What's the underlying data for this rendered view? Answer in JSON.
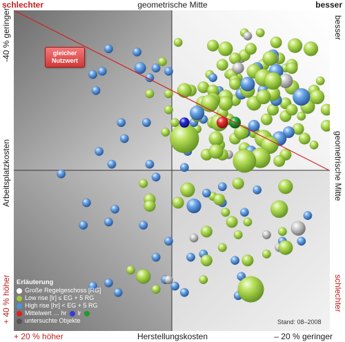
{
  "labels": {
    "top_left": "schlechter",
    "top_center": "geometrische Mitte",
    "top_right": "besser",
    "left_top": "-40 % geringer",
    "left_middle": "Arbeitsplatzkosten",
    "left_bottom": "+ 40 % höher",
    "right_top": "besser",
    "right_middle": "geometrische Mitte",
    "right_bottom": "schlechter",
    "bottom_left": "+ 20 % höher",
    "bottom_center": "Herstellungskosten",
    "bottom_right": "– 20 % geringer",
    "nutzwert_line1": "gleicher",
    "nutzwert_line2": "Nutzwert",
    "stand": "Stand: 08–2008"
  },
  "legend": {
    "title": "Erläuterung",
    "items": [
      {
        "label": "Große Regelgeschoss [RG]",
        "color": "#ffffff"
      },
      {
        "label": "Low rise [lr]  ≤ EG + 5 RG",
        "color": "#9ccc3c"
      },
      {
        "label": "High rise [hr]  < EG + 5 RG",
        "color": "#4f94d8"
      },
      {
        "label": "Mittelwert … hr",
        "color": "#e02020"
      },
      {
        "label": "untersuchte Objekte",
        "color": "#555555"
      }
    ],
    "mittel_lr_label": "lr",
    "mittel_colors": [
      "#3a3ad8",
      "#1f9a2f"
    ]
  },
  "colors": {
    "green": "#9ccc3c",
    "blue": "#4f94d8",
    "grey": "#bbbbbb",
    "diagonal": "#d42020"
  },
  "chart_data": {
    "type": "scatter",
    "title": "",
    "xlabel": "Herstellungskosten",
    "ylabel": "Arbeitsplatzkosten",
    "xlim": [
      0,
      100
    ],
    "ylim": [
      0,
      100
    ],
    "grid": false,
    "legend": "bottom-left",
    "series": [
      {
        "name": "Low rise [lr]  ≤ EG + 5 RG",
        "color": "green",
        "points": [
          [
            54,
            60,
            10
          ],
          [
            73,
            53,
            8
          ],
          [
            78,
            54,
            7
          ],
          [
            79,
            60,
            6
          ],
          [
            72,
            62,
            5
          ],
          [
            64,
            60,
            5
          ],
          [
            58,
            67,
            4
          ],
          [
            58,
            63,
            3
          ],
          [
            62,
            71,
            6
          ],
          [
            54,
            75,
            5
          ],
          [
            56,
            75,
            4
          ],
          [
            60,
            76,
            4
          ],
          [
            63,
            75,
            4
          ],
          [
            60,
            71,
            5
          ],
          [
            67,
            73,
            5
          ],
          [
            65,
            65,
            6
          ],
          [
            63,
            65,
            4
          ],
          [
            69,
            80,
            4
          ],
          [
            73,
            86,
            4
          ],
          [
            66,
            83,
            4
          ],
          [
            67,
            88,
            5
          ],
          [
            70,
            85,
            4
          ],
          [
            70,
            78,
            4
          ],
          [
            70,
            77,
            4
          ],
          [
            75,
            88,
            4
          ],
          [
            79,
            83,
            4
          ],
          [
            88,
            83,
            4
          ],
          [
            84,
            85,
            4
          ],
          [
            89,
            89,
            5
          ],
          [
            94,
            88,
            5
          ],
          [
            88,
            76,
            5
          ],
          [
            82,
            74,
            5
          ],
          [
            86,
            67,
            4
          ],
          [
            93,
            70,
            5
          ],
          [
            96,
            73,
            5
          ],
          [
            90,
            63,
            4
          ],
          [
            92,
            60,
            4
          ],
          [
            99,
            64,
            4
          ],
          [
            81,
            58,
            6
          ],
          [
            76,
            62,
            4
          ],
          [
            80,
            66,
            4
          ],
          [
            76,
            71,
            4
          ],
          [
            79,
            79,
            6
          ],
          [
            74,
            75,
            5
          ],
          [
            76,
            71,
            5
          ],
          [
            68,
            66,
            4
          ],
          [
            81,
            85,
            5
          ],
          [
            83,
            90,
            4
          ],
          [
            86,
            71,
            4
          ],
          [
            61,
            55,
            4
          ],
          [
            55,
            57,
            3
          ],
          [
            86,
            55,
            4
          ],
          [
            88,
            82,
            4
          ],
          [
            82,
            78,
            6
          ],
          [
            66,
            68,
            4
          ],
          [
            67,
            71,
            5
          ],
          [
            63,
            72,
            5
          ],
          [
            51,
            65,
            3
          ],
          [
            49,
            69,
            3
          ],
          [
            49,
            74,
            3
          ],
          [
            48,
            62,
            3
          ],
          [
            43,
            74,
            3
          ],
          [
            47,
            84,
            3
          ],
          [
            52,
            90,
            3
          ],
          [
            63,
            89,
            4
          ],
          [
            71,
            79,
            3
          ],
          [
            78,
            93,
            3
          ],
          [
            83,
            85,
            3
          ],
          [
            86,
            82,
            3
          ],
          [
            97,
            78,
            3
          ],
          [
            86,
            45,
            5
          ],
          [
            84,
            38,
            6
          ],
          [
            71,
            46,
            4
          ],
          [
            65,
            41,
            4
          ],
          [
            55,
            44,
            5
          ],
          [
            52,
            40,
            4
          ],
          [
            43,
            41,
            4
          ],
          [
            43,
            39,
            4
          ],
          [
            41,
            46,
            3
          ],
          [
            69,
            34,
            4
          ],
          [
            71,
            30,
            3
          ],
          [
            66,
            26,
            3
          ],
          [
            61,
            31,
            4
          ],
          [
            63,
            42,
            3
          ],
          [
            67,
            37,
            3
          ],
          [
            74,
            22,
            4
          ],
          [
            80,
            24,
            3
          ],
          [
            86,
            26,
            5
          ],
          [
            85,
            31,
            3
          ],
          [
            74,
            34,
            3
          ],
          [
            41,
            17,
            5
          ],
          [
            37,
            19,
            3
          ],
          [
            61,
            22,
            4
          ],
          [
            45,
            13,
            3
          ],
          [
            75,
            13,
            9
          ],
          [
            60,
            16,
            3
          ],
          [
            70,
            60,
            4
          ],
          [
            73,
            57,
            4
          ],
          [
            66,
            55,
            4
          ],
          [
            65,
            58,
            4
          ],
          [
            64,
            56,
            5
          ],
          [
            78,
            53,
            4
          ],
          [
            84,
            53,
            4
          ],
          [
            88,
            69,
            4
          ],
          [
            91,
            67,
            3
          ],
          [
            95,
            75,
            4
          ],
          [
            99,
            69,
            4
          ],
          [
            76,
            81,
            5
          ],
          [
            79,
            73,
            5
          ],
          [
            82,
            69,
            4
          ],
          [
            70,
            72,
            4
          ],
          [
            68,
            80,
            3
          ],
          [
            62,
            80,
            3
          ],
          [
            73,
            93,
            3
          ],
          [
            95,
            58,
            3
          ]
        ]
      },
      {
        "name": "High rise [hr]  < EG + 5 RG",
        "color": "blue",
        "points": [
          [
            58,
            68,
            5
          ],
          [
            65,
            75,
            3
          ],
          [
            74,
            77,
            5
          ],
          [
            79,
            75,
            4
          ],
          [
            83,
            72,
            4
          ],
          [
            82,
            86,
            4
          ],
          [
            83,
            81,
            5
          ],
          [
            77,
            82,
            4
          ],
          [
            73,
            62,
            4
          ],
          [
            76,
            64,
            4
          ],
          [
            91,
            73,
            6
          ],
          [
            84,
            60,
            5
          ],
          [
            87,
            62,
            4
          ],
          [
            75,
            56,
            4
          ],
          [
            72,
            74,
            4
          ],
          [
            60,
            66,
            3
          ],
          [
            57,
            65,
            3
          ],
          [
            63,
            79,
            3
          ],
          [
            49,
            81,
            3
          ],
          [
            43,
            79,
            3
          ],
          [
            45,
            82,
            3
          ],
          [
            30,
            88,
            3
          ],
          [
            25,
            80,
            3
          ],
          [
            26,
            75,
            3
          ],
          [
            27,
            56,
            3
          ],
          [
            31,
            52,
            3
          ],
          [
            34,
            65,
            3
          ],
          [
            35,
            60,
            3
          ],
          [
            40,
            82,
            4
          ],
          [
            42,
            65,
            3
          ],
          [
            45,
            48,
            3
          ],
          [
            43,
            52,
            3
          ],
          [
            23,
            40,
            3
          ],
          [
            22,
            33,
            3
          ],
          [
            15,
            49,
            3
          ],
          [
            32,
            38,
            3
          ],
          [
            54,
            51,
            3
          ],
          [
            57,
            39,
            5
          ],
          [
            66,
            40,
            3
          ],
          [
            72,
            17,
            3
          ],
          [
            41,
            33,
            3
          ],
          [
            30,
            34,
            3
          ],
          [
            56,
            23,
            3
          ],
          [
            49,
            28,
            3
          ],
          [
            45,
            23,
            3
          ],
          [
            25,
            14,
            3
          ],
          [
            30,
            15,
            3
          ],
          [
            33,
            12,
            3
          ],
          [
            54,
            12,
            3
          ],
          [
            55,
            56,
            3
          ],
          [
            61,
            43,
            3
          ],
          [
            66,
            45,
            3
          ],
          [
            60,
            24,
            3
          ],
          [
            70,
            22,
            3
          ],
          [
            85,
            28,
            3
          ],
          [
            91,
            28,
            3
          ],
          [
            93,
            36,
            3
          ],
          [
            71,
            11,
            3
          ],
          [
            51,
            14,
            3
          ],
          [
            48,
            16,
            3
          ],
          [
            77,
            44,
            3
          ],
          [
            73,
            37,
            3
          ],
          [
            39,
            87,
            3
          ],
          [
            28,
            81,
            3
          ]
        ]
      },
      {
        "name": "untersuchte Objekte",
        "color": "grey",
        "points": [
          [
            86,
            78,
            5
          ],
          [
            82,
            85,
            4
          ],
          [
            74,
            92,
            3
          ],
          [
            57,
            29,
            3
          ],
          [
            84,
            26,
            3
          ],
          [
            80,
            30,
            3
          ],
          [
            49,
            16,
            3
          ],
          [
            90,
            32,
            5
          ],
          [
            71,
            82,
            4
          ],
          [
            72,
            85,
            3
          ],
          [
            68,
            55,
            3
          ]
        ]
      },
      {
        "name": "Mittelwert … hr",
        "color": "#e02020",
        "points": [
          [
            66,
            65,
            4
          ]
        ]
      },
      {
        "name": "lr",
        "color": "#1f9a2f",
        "points": [
          [
            70,
            65,
            4
          ]
        ]
      },
      {
        "name": "Mittelwert",
        "color": "#3a3ad8",
        "points": [
          [
            54,
            65,
            3.5
          ]
        ]
      }
    ],
    "diagonal": {
      "from": [
        0,
        100
      ],
      "to": [
        100,
        50
      ]
    },
    "center": [
      50,
      50
    ]
  }
}
